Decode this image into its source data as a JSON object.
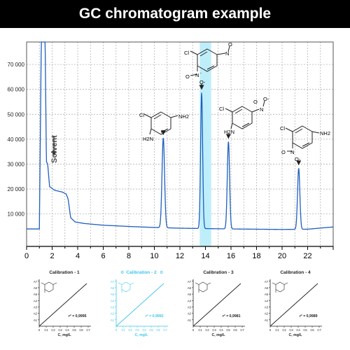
{
  "title": "GC chromatogram example",
  "colors": {
    "trace": "#1f5fbf",
    "highlight": "#bfeefb",
    "calib_highlight": "#3ec6ec",
    "grid": "#a8a8a8"
  },
  "chart_data": {
    "type": "line",
    "x_ticks": [
      0,
      2,
      4,
      6,
      8,
      10,
      12,
      14,
      16,
      18,
      20,
      22
    ],
    "y_ticks": [
      10000,
      20000,
      30000,
      40000,
      50000,
      60000,
      70000
    ],
    "y_tick_labels": [
      "10 000",
      "20 000",
      "30 000",
      "40 000",
      "50 000",
      "60 000",
      "70 000"
    ],
    "xlim": [
      0,
      24
    ],
    "ylim": [
      -3000,
      79000
    ],
    "grid": true,
    "highlight_band": [
      13.55,
      14.45
    ],
    "baseline": [
      [
        0,
        4000
      ],
      [
        1.0,
        4000
      ],
      [
        1.15,
        79000
      ],
      [
        1.45,
        79000
      ],
      [
        1.55,
        31000
      ],
      [
        1.65,
        30000
      ],
      [
        1.8,
        21000
      ],
      [
        2.2,
        19500
      ],
      [
        2.8,
        18800
      ],
      [
        3.1,
        18000
      ],
      [
        3.25,
        16000
      ],
      [
        3.45,
        8500
      ],
      [
        3.8,
        6800
      ],
      [
        4.5,
        6200
      ],
      [
        6,
        5500
      ],
      [
        8,
        5000
      ],
      [
        10,
        4600
      ],
      [
        12,
        4300
      ],
      [
        16,
        4000
      ],
      [
        20,
        3800
      ],
      [
        22,
        3900
      ],
      [
        24,
        4800
      ]
    ],
    "peaks": [
      {
        "t": 10.7,
        "height": 36000,
        "sigma": 0.1
      },
      {
        "t": 13.7,
        "height": 54500,
        "sigma": 0.08
      },
      {
        "t": 15.8,
        "height": 35000,
        "sigma": 0.09
      },
      {
        "t": 21.3,
        "height": 24500,
        "sigma": 0.09
      }
    ],
    "solvent_label": "Solvent",
    "structures": [
      {
        "labels": [
          "Cl",
          "H2N",
          "NH2"
        ]
      },
      {
        "labels": [
          "Cl",
          "N",
          "O",
          "-",
          "N",
          "O",
          "O-"
        ]
      },
      {
        "labels": [
          "Cl",
          "H2N",
          "N",
          "O",
          "O-"
        ]
      },
      {
        "labels": [
          "Cl",
          "N",
          "O",
          "O-",
          "NH2"
        ]
      }
    ]
  },
  "calibrations": [
    {
      "title": "Calibration - 1",
      "r2": "r² = 0,9995",
      "highlight": false
    },
    {
      "title": "Calibration - 2",
      "r2": "r² = 0,9992",
      "highlight": true
    },
    {
      "title": "Calibration - 3",
      "r2": "r² = 0,9981",
      "highlight": false
    },
    {
      "title": "Calibration - 4",
      "r2": "r² = 0,9989",
      "highlight": false
    }
  ],
  "calib_axes": {
    "y_ticks": [
      "A1",
      "A2",
      "A3",
      "A4",
      "A5",
      "A6",
      "A7"
    ],
    "x_ticks": [
      "0",
      "C1",
      "C2",
      "C3",
      "C4",
      "C5",
      "C6",
      "C7"
    ],
    "xlabel": "C, mg/L"
  }
}
